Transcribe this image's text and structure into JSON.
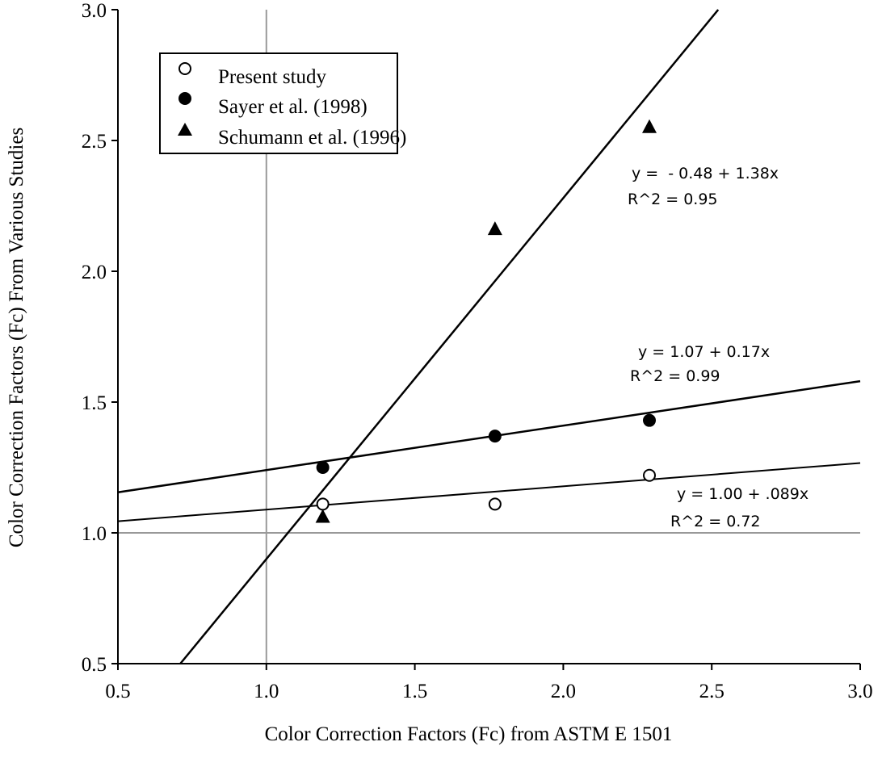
{
  "chart_data": {
    "type": "scatter",
    "title": "",
    "xlabel": "Color Correction Factors (Fc) from ASTM E 1501",
    "ylabel": "Color Correction Factors (Fc) From Various Studies",
    "xlim": [
      0.5,
      3.0
    ],
    "ylim": [
      0.5,
      3.0
    ],
    "x_ticks": [
      "0.5",
      "1.0",
      "1.5",
      "2.0",
      "2.5",
      "3.0"
    ],
    "y_ticks": [
      "0.5",
      "1.0",
      "1.5",
      "2.0",
      "2.5",
      "3.0"
    ],
    "grid": false,
    "reference_lines": [
      {
        "axis": "x",
        "value": 1.0
      },
      {
        "axis": "y",
        "value": 1.0
      }
    ],
    "legend_position": "top-left",
    "series": [
      {
        "name": "Present study",
        "marker": "open-circle",
        "x": [
          1.19,
          1.77,
          2.29
        ],
        "y": [
          1.11,
          1.11,
          1.22
        ],
        "fit": {
          "intercept": 1.0,
          "slope": 0.089,
          "equation": "y = 1.00 + .089x",
          "r2": "R^2 = 0.72"
        }
      },
      {
        "name": "Sayer et al. (1998)",
        "marker": "filled-circle",
        "x": [
          1.19,
          1.77,
          2.29
        ],
        "y": [
          1.25,
          1.37,
          1.43
        ],
        "fit": {
          "intercept": 1.07,
          "slope": 0.17,
          "equation": "y = 1.07 + 0.17x",
          "r2": "R^2 = 0.99"
        }
      },
      {
        "name": "Schumann et al. (1996)",
        "marker": "filled-triangle",
        "x": [
          1.19,
          1.77,
          2.29
        ],
        "y": [
          1.06,
          2.16,
          2.55
        ],
        "fit": {
          "intercept": -0.48,
          "slope": 1.38,
          "equation": "y =  - 0.48 + 1.38x",
          "r2": "R^2 = 0.95"
        }
      }
    ]
  }
}
